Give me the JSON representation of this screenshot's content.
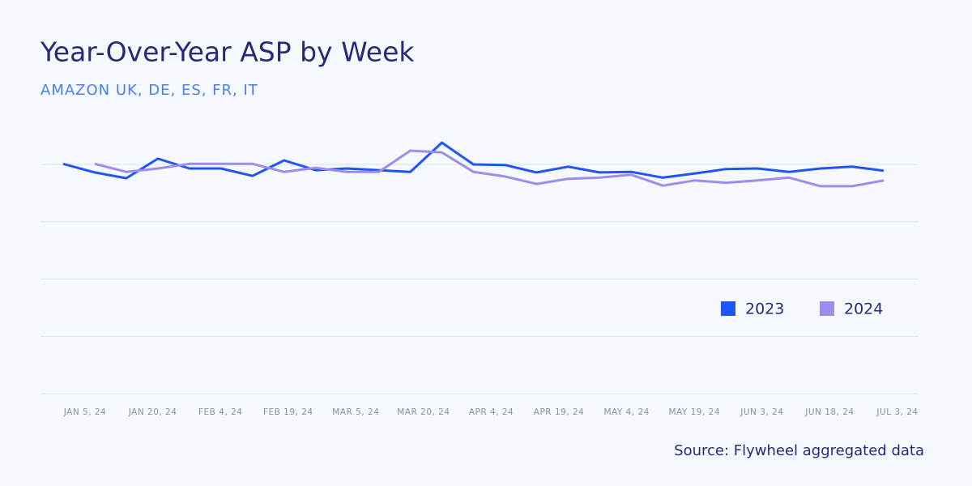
{
  "chart_data": {
    "type": "line",
    "title": "Year-Over-Year ASP by Week",
    "subtitle": "AMAZON UK, DE, ES, FR, IT",
    "source": "Source: Flywheel aggregated data",
    "x_labels": [
      "JAN 5, 24",
      "JAN 20, 24",
      "FEB 4, 24",
      "FEB 19, 24",
      "MAR 5, 24",
      "MAR 20, 24",
      "APR 4, 24",
      "APR 19, 24",
      "MAY 4, 24",
      "MAY 19, 24",
      "JUN 3, 24",
      "JUN 18, 24",
      "JUL 3, 24"
    ],
    "ylim": [
      0,
      4
    ],
    "yticks": [
      0,
      1,
      2,
      3,
      4
    ],
    "ytick_labels": false,
    "grid": true,
    "legend": "right",
    "series": [
      {
        "name": "2023",
        "color": "#1f55f2",
        "values": [
          4.01,
          3.86,
          3.76,
          4.1,
          3.93,
          3.93,
          3.8,
          4.07,
          3.9,
          3.93,
          3.9,
          3.87,
          4.38,
          4.0,
          3.99,
          3.86,
          3.96,
          3.86,
          3.87,
          3.77,
          3.84,
          3.92,
          3.93,
          3.87,
          3.93,
          3.96,
          3.89
        ]
      },
      {
        "name": "2024",
        "color": "#9d8ce9",
        "values": [
          null,
          4.01,
          3.87,
          3.93,
          4.01,
          4.01,
          4.01,
          3.87,
          3.94,
          3.87,
          3.87,
          4.24,
          4.21,
          3.87,
          3.79,
          3.66,
          3.75,
          3.77,
          3.82,
          3.63,
          3.72,
          3.68,
          3.72,
          3.77,
          3.62,
          3.62,
          3.72
        ]
      }
    ]
  }
}
